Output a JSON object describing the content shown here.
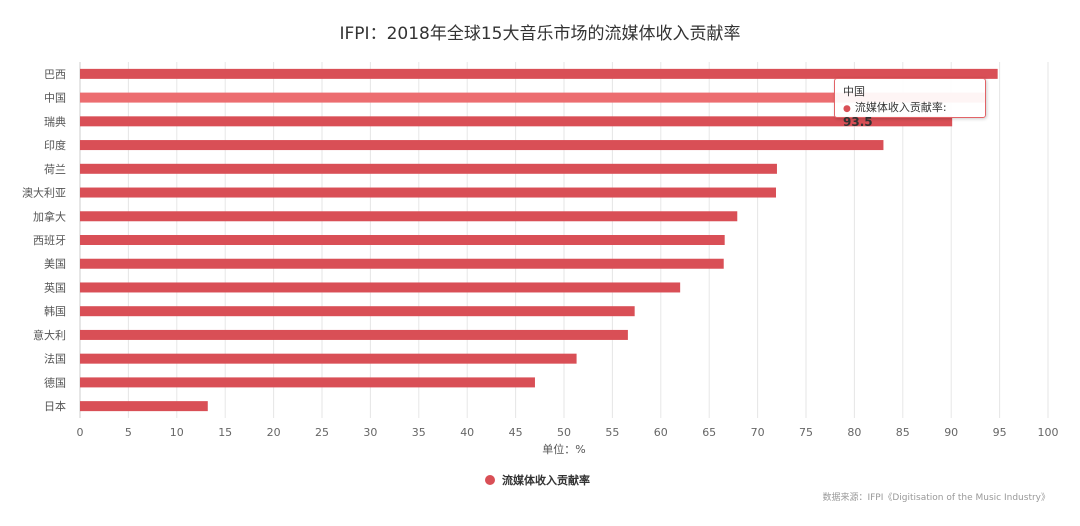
{
  "chart_data": {
    "type": "bar",
    "orientation": "horizontal",
    "title": "IFPI：2018年全球15大音乐市场的流媒体收入贡献率",
    "categories": [
      "巴西",
      "中国",
      "瑞典",
      "印度",
      "荷兰",
      "澳大利亚",
      "加拿大",
      "西班牙",
      "美国",
      "英国",
      "韩国",
      "意大利",
      "法国",
      "德国",
      "日本"
    ],
    "series": [
      {
        "name": "流媒体收入贡献率",
        "values": [
          94.8,
          93.5,
          90.1,
          83.0,
          72.0,
          71.9,
          67.9,
          66.6,
          66.5,
          62.0,
          57.3,
          56.6,
          51.3,
          47.0,
          13.2
        ],
        "color": "#d94f56"
      }
    ],
    "xlabel": "单位：%",
    "xlim": [
      0,
      100
    ],
    "xticks": [
      "0",
      "5",
      "10",
      "15",
      "20",
      "25",
      "30",
      "35",
      "40",
      "45",
      "50",
      "55",
      "60",
      "65",
      "70",
      "75",
      "80",
      "85",
      "90",
      "95",
      "100"
    ],
    "grid": true,
    "legend_position": "bottom-center",
    "highlight_color": "#ec6d70",
    "tooltip": {
      "category": "中国",
      "label": "流媒体收入贡献率",
      "value": "93.5"
    },
    "source": "数据来源：IFPI《Digitisation of the Music Industry》"
  }
}
